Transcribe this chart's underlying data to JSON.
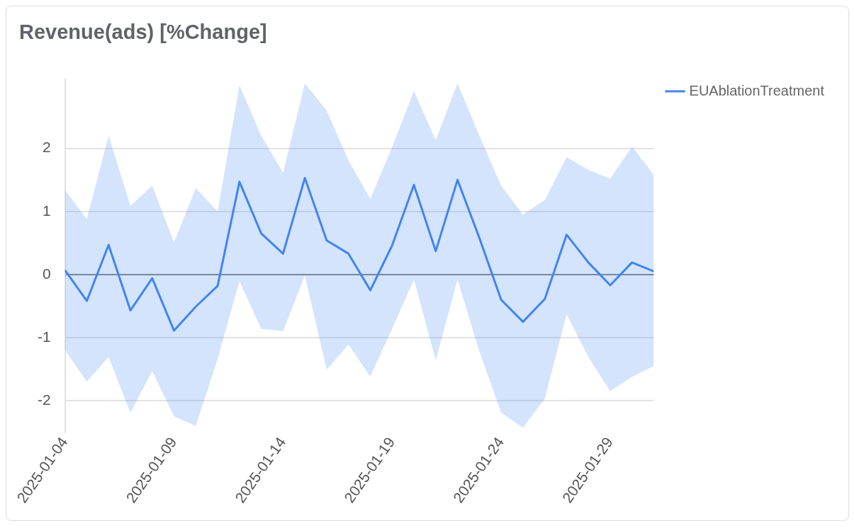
{
  "chart_data": {
    "type": "line",
    "title": "Revenue(ads) [%Change]",
    "x": [
      "2025-01-04",
      "2025-01-05",
      "2025-01-06",
      "2025-01-07",
      "2025-01-08",
      "2025-01-09",
      "2025-01-10",
      "2025-01-11",
      "2025-01-12",
      "2025-01-13",
      "2025-01-14",
      "2025-01-15",
      "2025-01-16",
      "2025-01-17",
      "2025-01-18",
      "2025-01-19",
      "2025-01-20",
      "2025-01-21",
      "2025-01-22",
      "2025-01-23",
      "2025-01-24",
      "2025-01-25",
      "2025-01-26",
      "2025-01-27",
      "2025-01-28",
      "2025-01-29",
      "2025-01-30",
      "2025-01-31"
    ],
    "series": [
      {
        "name": "EUAblationTreatment",
        "color": "#4285f4",
        "values": [
          0.07,
          -0.42,
          0.47,
          -0.57,
          -0.06,
          -0.89,
          -0.51,
          -0.18,
          1.47,
          0.65,
          0.33,
          1.53,
          0.54,
          0.33,
          -0.25,
          0.46,
          1.42,
          0.37,
          1.5,
          0.58,
          -0.4,
          -0.75,
          -0.39,
          0.63,
          0.19,
          -0.17,
          0.19,
          0.05
        ],
        "lower": [
          -1.2,
          -1.7,
          -1.31,
          -2.19,
          -1.53,
          -2.25,
          -2.4,
          -1.34,
          -0.11,
          -0.86,
          -0.9,
          -0.02,
          -1.51,
          -1.11,
          -1.62,
          -0.86,
          -0.08,
          -1.36,
          -0.08,
          -1.22,
          -2.19,
          -2.43,
          -1.97,
          -0.63,
          -1.31,
          -1.85,
          -1.62,
          -1.45
        ],
        "upper": [
          1.34,
          0.88,
          2.2,
          1.09,
          1.41,
          0.51,
          1.37,
          1.0,
          3.0,
          2.2,
          1.61,
          3.03,
          2.6,
          1.81,
          1.2,
          2.02,
          2.91,
          2.13,
          3.03,
          2.2,
          1.41,
          0.95,
          1.18,
          1.86,
          1.66,
          1.52,
          2.03,
          1.58
        ]
      }
    ],
    "xlim": [
      "2025-01-04",
      "2025-01-31"
    ],
    "xticks": [
      "2025-01-04",
      "2025-01-09",
      "2025-01-14",
      "2025-01-19",
      "2025-01-24",
      "2025-01-29"
    ],
    "ylim": [
      -2.5,
      3.1
    ],
    "yticks": [
      -2,
      -1,
      0,
      1,
      2
    ],
    "grid": "y",
    "legend": "top right",
    "marker": "none",
    "line_style": "solid"
  }
}
